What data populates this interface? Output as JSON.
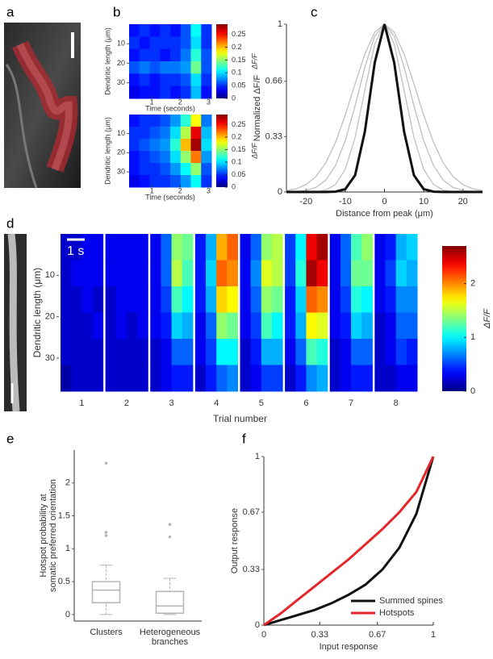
{
  "chart_data": [
    {
      "type": "image",
      "panel": "a"
    },
    {
      "type": "heatmap",
      "panel": "b",
      "xlabel": "Time (seconds)",
      "ylabel": "Dendritic length (μm)",
      "colorbar_label": "ΔF/F",
      "xlim": [
        0.2,
        3.1
      ],
      "xticks": [
        1,
        2,
        3
      ],
      "ylim": [
        0,
        38
      ],
      "yticks": [
        10,
        20,
        30
      ],
      "clim": [
        0,
        0.29
      ],
      "cticks": [
        0,
        0.05,
        0.1,
        0.15,
        0.2,
        0.25
      ],
      "values": [
        [
          0.04,
          0.05,
          0.04,
          0.05,
          0.04,
          0.06,
          0.11,
          0.05
        ],
        [
          0.05,
          0.04,
          0.05,
          0.05,
          0.05,
          0.06,
          0.1,
          0.05
        ],
        [
          0.04,
          0.05,
          0.05,
          0.04,
          0.05,
          0.07,
          0.12,
          0.06
        ],
        [
          0.06,
          0.07,
          0.06,
          0.07,
          0.07,
          0.08,
          0.14,
          0.06
        ],
        [
          0.04,
          0.05,
          0.04,
          0.05,
          0.05,
          0.06,
          0.1,
          0.05
        ],
        [
          0.03,
          0.04,
          0.04,
          0.05,
          0.04,
          0.05,
          0.09,
          0.04
        ]
      ]
    },
    {
      "type": "heatmap",
      "xlabel": "Time (seconds)",
      "ylabel": "Dendritic length (μm)",
      "colorbar_label": "ΔF/F",
      "xlim": [
        0.2,
        3.1
      ],
      "xticks": [
        1,
        2,
        3
      ],
      "ylim": [
        0,
        38
      ],
      "yticks": [
        10,
        20,
        30
      ],
      "clim": [
        0,
        0.29
      ],
      "cticks": [
        0,
        0.05,
        0.1,
        0.15,
        0.2,
        0.25
      ],
      "values": [
        [
          0.04,
          0.05,
          0.05,
          0.06,
          0.08,
          0.12,
          0.18,
          0.07
        ],
        [
          0.05,
          0.05,
          0.06,
          0.07,
          0.1,
          0.16,
          0.26,
          0.09
        ],
        [
          0.05,
          0.06,
          0.07,
          0.08,
          0.12,
          0.2,
          0.28,
          0.1
        ],
        [
          0.04,
          0.05,
          0.06,
          0.07,
          0.1,
          0.15,
          0.22,
          0.08
        ],
        [
          0.04,
          0.05,
          0.05,
          0.06,
          0.08,
          0.11,
          0.15,
          0.06
        ],
        [
          0.03,
          0.04,
          0.05,
          0.05,
          0.06,
          0.08,
          0.11,
          0.05
        ]
      ]
    },
    {
      "type": "line",
      "panel": "c",
      "xlabel": "Distance from peak (μm)",
      "ylabel": "Normalized ΔF/F",
      "xlim": [
        -25,
        25
      ],
      "xticks": [
        -20,
        -10,
        0,
        10,
        20
      ],
      "ylim": [
        0,
        1
      ],
      "yticks": [
        0,
        0.33,
        0.66,
        1
      ],
      "x": [
        -25,
        -22.5,
        -20,
        -17.5,
        -15,
        -12.5,
        -10,
        -7.5,
        -5,
        -2.5,
        0,
        2.5,
        5,
        7.5,
        10,
        12.5,
        15,
        17.5,
        20,
        22.5,
        25
      ],
      "series": [
        {
          "color": "#c0c0c0",
          "values": [
            0,
            0,
            0,
            0.002,
            0.011,
            0.044,
            0.135,
            0.325,
            0.607,
            0.882,
            1,
            0.882,
            0.607,
            0.325,
            0.135,
            0.044,
            0.011,
            0.002,
            0,
            0,
            0
          ]
        },
        {
          "color": "#c0c0c0",
          "values": [
            0.001,
            0.0025,
            0.009,
            0.027,
            0.07,
            0.157,
            0.306,
            0.514,
            0.744,
            0.929,
            1,
            0.929,
            0.744,
            0.514,
            0.306,
            0.157,
            0.07,
            0.027,
            0.009,
            0.0025,
            0.001
          ]
        },
        {
          "color": "#c0c0c0",
          "values": [
            0.008,
            0.019,
            0.044,
            0.092,
            0.172,
            0.295,
            0.458,
            0.645,
            0.823,
            0.952,
            1,
            0.952,
            0.823,
            0.645,
            0.458,
            0.295,
            0.172,
            0.092,
            0.044,
            0.019,
            0.008
          ]
        },
        {
          "color": "#111111",
          "values": [
            0,
            0,
            0,
            0,
            0,
            0.002,
            0.017,
            0.1,
            0.36,
            0.77,
            1,
            0.77,
            0.36,
            0.1,
            0.017,
            0.002,
            0,
            0,
            0,
            0,
            0
          ]
        }
      ]
    },
    {
      "type": "trial_heatmap",
      "panel": "d",
      "xlabel": "Trial number",
      "ylabel": "Dendritic length (μm)",
      "colorbar_label": "ΔF/F",
      "scalebar_label": "1 s",
      "ylim": [
        0,
        38
      ],
      "yticks": [
        10,
        20,
        30
      ],
      "clim": [
        0,
        2.7
      ],
      "cticks": [
        0,
        1,
        2
      ],
      "categories": [
        "1",
        "2",
        "3",
        "4",
        "5",
        "6",
        "7",
        "8"
      ],
      "values": [
        [
          [
            0.2,
            0.2,
            0.3,
            0.3
          ],
          [
            0.2,
            0.3,
            0.3,
            0.3
          ],
          [
            0.2,
            0.2,
            0.3,
            0.2
          ],
          [
            0.2,
            0.2,
            0.2,
            0.3
          ],
          [
            0.2,
            0.2,
            0.2,
            0.2
          ],
          [
            0.1,
            0.2,
            0.2,
            0.2
          ]
        ],
        [
          [
            0.3,
            0.3,
            0.3,
            0.3
          ],
          [
            0.3,
            0.3,
            0.3,
            0.3
          ],
          [
            0.2,
            0.3,
            0.3,
            0.3
          ],
          [
            0.2,
            0.3,
            0.2,
            0.3
          ],
          [
            0.2,
            0.2,
            0.2,
            0.2
          ],
          [
            0.2,
            0.2,
            0.2,
            0.2
          ]
        ],
        [
          [
            0.3,
            0.6,
            1.4,
            1.3
          ],
          [
            0.3,
            0.6,
            1.5,
            1.2
          ],
          [
            0.3,
            0.5,
            1.2,
            1.0
          ],
          [
            0.3,
            0.4,
            0.9,
            0.8
          ],
          [
            0.2,
            0.3,
            0.6,
            0.6
          ],
          [
            0.2,
            0.3,
            0.4,
            0.4
          ]
        ],
        [
          [
            0.4,
            0.8,
            1.9,
            2.1
          ],
          [
            0.4,
            0.9,
            2.1,
            2.0
          ],
          [
            0.4,
            0.8,
            1.8,
            1.7
          ],
          [
            0.3,
            0.6,
            1.4,
            1.3
          ],
          [
            0.3,
            0.5,
            1.0,
            1.0
          ],
          [
            0.2,
            0.4,
            0.6,
            0.7
          ]
        ],
        [
          [
            0.3,
            0.6,
            1.4,
            1.5
          ],
          [
            0.3,
            0.7,
            1.6,
            1.5
          ],
          [
            0.3,
            0.6,
            1.4,
            1.3
          ],
          [
            0.3,
            0.5,
            1.2,
            1.0
          ],
          [
            0.2,
            0.4,
            0.8,
            0.8
          ],
          [
            0.2,
            0.3,
            0.5,
            0.5
          ]
        ],
        [
          [
            0.5,
            1.0,
            2.4,
            2.6
          ],
          [
            0.5,
            1.1,
            2.6,
            2.4
          ],
          [
            0.4,
            0.9,
            2.1,
            2.0
          ],
          [
            0.4,
            0.8,
            1.7,
            1.6
          ],
          [
            0.3,
            0.6,
            1.2,
            1.1
          ],
          [
            0.2,
            0.4,
            0.7,
            0.8
          ]
        ],
        [
          [
            0.3,
            0.6,
            1.2,
            1.4
          ],
          [
            0.3,
            0.6,
            1.3,
            1.3
          ],
          [
            0.3,
            0.5,
            1.1,
            1.0
          ],
          [
            0.3,
            0.4,
            0.9,
            0.8
          ],
          [
            0.2,
            0.3,
            0.6,
            0.6
          ],
          [
            0.2,
            0.3,
            0.4,
            0.4
          ]
        ],
        [
          [
            0.3,
            0.4,
            0.8,
            0.9
          ],
          [
            0.3,
            0.5,
            0.9,
            0.8
          ],
          [
            0.3,
            0.4,
            0.7,
            0.7
          ],
          [
            0.2,
            0.3,
            0.6,
            0.6
          ],
          [
            0.2,
            0.3,
            0.5,
            0.4
          ],
          [
            0.2,
            0.2,
            0.3,
            0.3
          ]
        ]
      ]
    },
    {
      "type": "box",
      "panel": "e",
      "ylabel": [
        "Hotspot probability at",
        "somatic preferred orientation"
      ],
      "ylim": [
        -0.1,
        2.5
      ],
      "yticks": [
        0,
        0.5,
        1,
        1.5,
        2
      ],
      "color": "#b5b5b5",
      "categories": [
        [
          "Clusters"
        ],
        [
          "Heterogeneous",
          "branches"
        ]
      ],
      "boxes": [
        {
          "whislo": 0,
          "q1": 0.18,
          "med": 0.37,
          "q3": 0.5,
          "whishi": 0.75,
          "fliers": [
            1.2,
            1.25,
            2.3
          ]
        },
        {
          "whislo": 0,
          "q1": 0.02,
          "med": 0.13,
          "q3": 0.35,
          "whishi": 0.55,
          "fliers": [
            1.18,
            1.37
          ]
        }
      ]
    },
    {
      "type": "line",
      "panel": "f",
      "xlabel": "Input response",
      "ylabel": "Output response",
      "xlim": [
        0,
        1
      ],
      "xticks": [
        0,
        0.33,
        0.67,
        1
      ],
      "ylim": [
        0,
        1
      ],
      "yticks": [
        0,
        0.33,
        0.67,
        1
      ],
      "legend": "lower right",
      "x": [
        0,
        0.1,
        0.2,
        0.3,
        0.4,
        0.5,
        0.6,
        0.7,
        0.8,
        0.9,
        1
      ],
      "series": [
        {
          "name": "Summed spines",
          "color": "#111111",
          "values": [
            0,
            0.03,
            0.06,
            0.09,
            0.13,
            0.18,
            0.24,
            0.33,
            0.46,
            0.66,
            1
          ]
        },
        {
          "name": "Hotspots",
          "color": "#e3262b",
          "values": [
            0,
            0.07,
            0.15,
            0.23,
            0.31,
            0.39,
            0.48,
            0.57,
            0.67,
            0.79,
            1
          ]
        }
      ]
    }
  ]
}
